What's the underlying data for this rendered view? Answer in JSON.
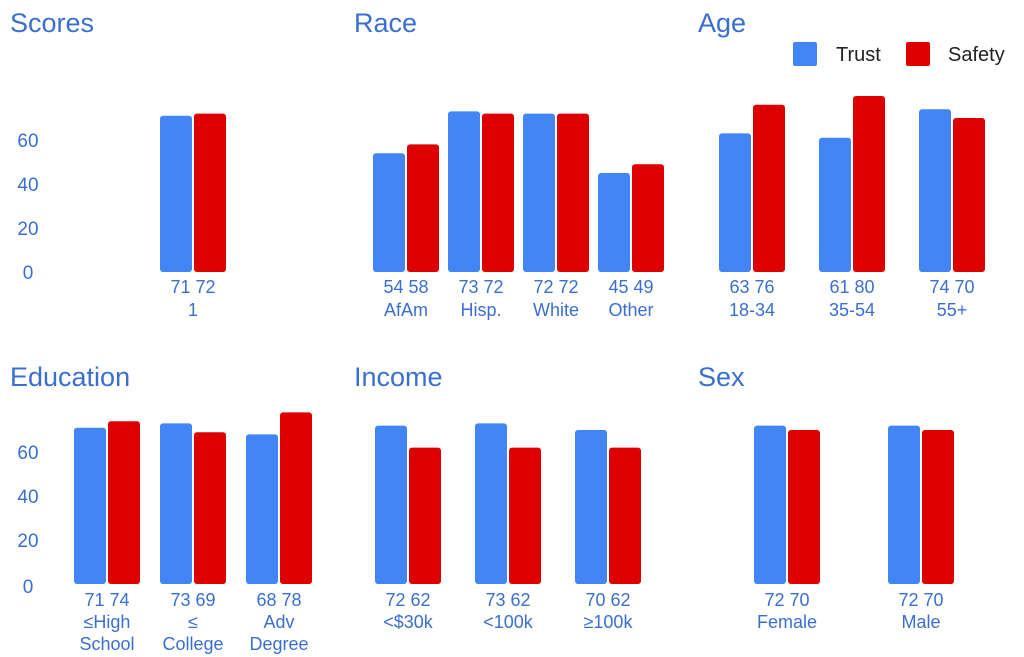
{
  "colors": {
    "trust": "#4285f4",
    "safety": "#dd0000",
    "text": "#3a6fd0"
  },
  "legend": {
    "position": "top-right",
    "items": [
      {
        "label": "Trust",
        "color": "#4285f4"
      },
      {
        "label": "Safety",
        "color": "#dd0000"
      }
    ]
  },
  "chart_data": [
    {
      "type": "bar",
      "title": "Scores",
      "categories": [
        [
          "1"
        ]
      ],
      "series": [
        {
          "name": "Trust",
          "values": [
            71
          ]
        },
        {
          "name": "Safety",
          "values": [
            72
          ]
        }
      ],
      "yticks": [
        0,
        20,
        40,
        60
      ],
      "ylim": [
        0,
        80
      ],
      "grid": false
    },
    {
      "type": "bar",
      "title": "Race",
      "categories": [
        [
          "AfAm"
        ],
        [
          "Hisp."
        ],
        [
          "White"
        ],
        [
          "Other"
        ]
      ],
      "series": [
        {
          "name": "Trust",
          "values": [
            54,
            73,
            72,
            45
          ]
        },
        {
          "name": "Safety",
          "values": [
            58,
            72,
            72,
            49
          ]
        }
      ],
      "ylim": [
        0,
        80
      ],
      "grid": false
    },
    {
      "type": "bar",
      "title": "Age",
      "categories": [
        [
          "18-34"
        ],
        [
          "35-54"
        ],
        [
          "55+"
        ]
      ],
      "series": [
        {
          "name": "Trust",
          "values": [
            63,
            61,
            74
          ]
        },
        {
          "name": "Safety",
          "values": [
            76,
            80,
            70
          ]
        }
      ],
      "ylim": [
        0,
        80
      ],
      "grid": false
    },
    {
      "type": "bar",
      "title": "Education",
      "categories": [
        [
          "≤High",
          "School"
        ],
        [
          "≤",
          "College"
        ],
        [
          "Adv",
          "Degree"
        ]
      ],
      "series": [
        {
          "name": "Trust",
          "values": [
            71,
            73,
            68
          ]
        },
        {
          "name": "Safety",
          "values": [
            74,
            69,
            78
          ]
        }
      ],
      "yticks": [
        0,
        20,
        40,
        60
      ],
      "ylim": [
        0,
        80
      ],
      "grid": false
    },
    {
      "type": "bar",
      "title": "Income",
      "categories": [
        [
          "<$30k"
        ],
        [
          "<100k"
        ],
        [
          "≥100k"
        ]
      ],
      "series": [
        {
          "name": "Trust",
          "values": [
            72,
            73,
            70
          ]
        },
        {
          "name": "Safety",
          "values": [
            62,
            62,
            62
          ]
        }
      ],
      "ylim": [
        0,
        80
      ],
      "grid": false
    },
    {
      "type": "bar",
      "title": "Sex",
      "categories": [
        [
          "Female"
        ],
        [
          "Male"
        ]
      ],
      "series": [
        {
          "name": "Trust",
          "values": [
            72,
            72
          ]
        },
        {
          "name": "Safety",
          "values": [
            70,
            70
          ]
        }
      ],
      "ylim": [
        0,
        80
      ],
      "grid": false
    }
  ]
}
